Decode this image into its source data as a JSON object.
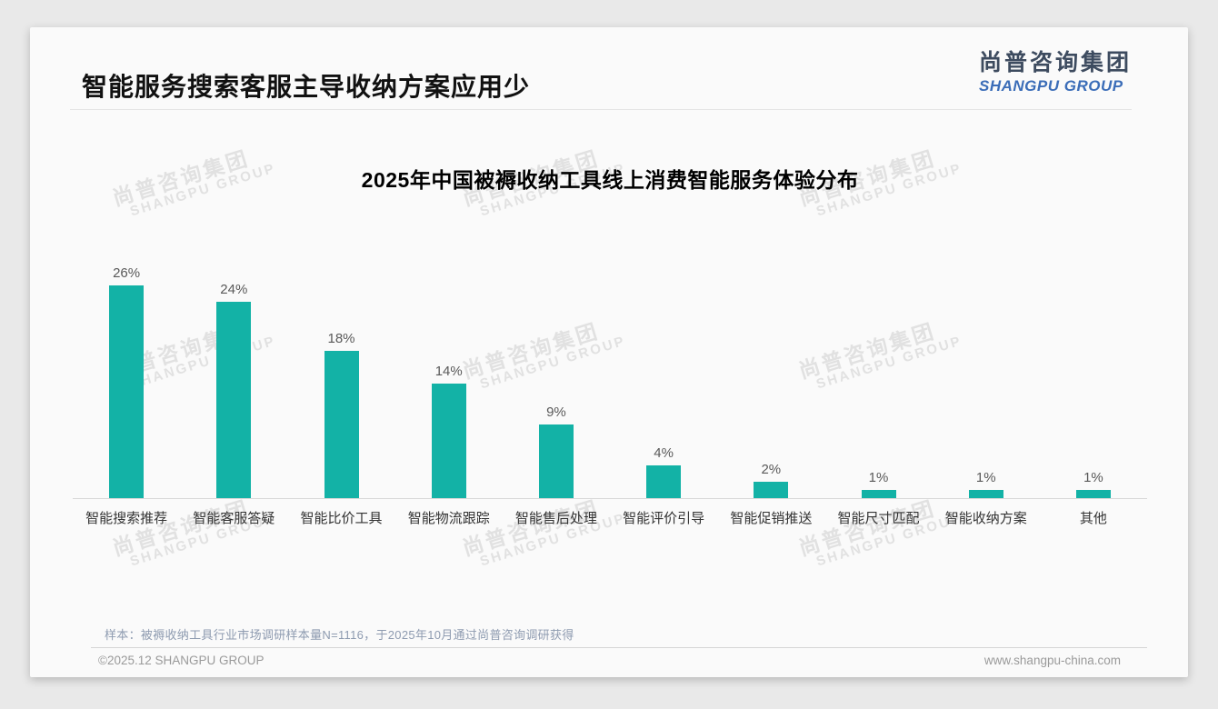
{
  "page": {
    "title": "智能服务搜索客服主导收纳方案应用少",
    "logo": {
      "cn": "尚普咨询集团",
      "en": "SHANGPU GROUP"
    },
    "watermark": {
      "cn": "尚普咨询集团",
      "en": "SHANGPU GROUP"
    },
    "note": "样本：被褥收纳工具行业市场调研样本量N=1116，于2025年10月通过尚普咨询调研获得",
    "footer": {
      "left": "©2025.12 SHANGPU GROUP",
      "right": "www.shangpu-china.com"
    },
    "colors": {
      "bar": "#13b2a6",
      "logo_cn": "#3d4b5f",
      "logo_en": "#3b6db8",
      "note_text": "#8e9bb0"
    }
  },
  "chart_data": {
    "type": "bar",
    "title": "2025年中国被褥收纳工具线上消费智能服务体验分布",
    "categories": [
      "智能搜索推荐",
      "智能客服答疑",
      "智能比价工具",
      "智能物流跟踪",
      "智能售后处理",
      "智能评价引导",
      "智能促销推送",
      "智能尺寸匹配",
      "智能收纳方案",
      "其他"
    ],
    "values": [
      26,
      24,
      18,
      14,
      9,
      4,
      2,
      1,
      1,
      1
    ],
    "unit": "%",
    "xlabel": "",
    "ylabel": "",
    "ylim": [
      0,
      28
    ],
    "grid": false,
    "legend": "none",
    "data_labels": true,
    "bar_color": "#13b2a6"
  }
}
